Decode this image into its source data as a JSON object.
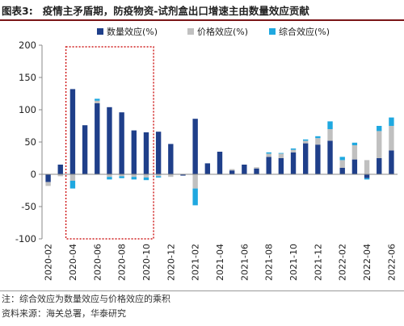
{
  "header": {
    "label": "图表3:",
    "title": "疫情主矛盾期，防疫物资-试剂盒出口增速主由数量效应贡献"
  },
  "notes": {
    "note": "注：综合效应为数量效应与价格效应的乘积",
    "source": "资料来源：海关总署，华泰研究"
  },
  "colors": {
    "quantity": "#1f3f8a",
    "price": "#c0c0c0",
    "combined": "#1fa8e0",
    "highlight_box": "#d02020",
    "axis": "#888888"
  },
  "chart_data": {
    "type": "bar",
    "stacked": true,
    "title": "",
    "xlabel": "",
    "ylabel": "",
    "ylim": [
      -100,
      200
    ],
    "yticks": [
      -100,
      -50,
      0,
      50,
      100,
      150,
      200
    ],
    "legend_position": "top",
    "grid": false,
    "categories": [
      "2020-02",
      "2020-03",
      "2020-04",
      "2020-05",
      "2020-06",
      "2020-07",
      "2020-08",
      "2020-09",
      "2020-10",
      "2020-11",
      "2020-12",
      "2021-01",
      "2021-02",
      "2021-03",
      "2021-04",
      "2021-05",
      "2021-06",
      "2021-07",
      "2021-08",
      "2021-09",
      "2021-10",
      "2021-11",
      "2021-12",
      "2022-01",
      "2022-02",
      "2022-03",
      "2022-04",
      "2022-05",
      "2022-06"
    ],
    "tick_labels": [
      "2020-02",
      "2020-04",
      "2020-06",
      "2020-08",
      "2020-10",
      "2020-12",
      "2021-02",
      "2021-04",
      "2021-06",
      "2021-08",
      "2021-10",
      "2021-12",
      "2022-02",
      "2022-04",
      "2022-06"
    ],
    "series": [
      {
        "name": "数量效应(%)",
        "color_key": "quantity",
        "values": [
          -12,
          15,
          132,
          76,
          110,
          104,
          96,
          68,
          65,
          66,
          47,
          -2,
          86,
          17,
          35,
          6,
          15,
          9,
          27,
          25,
          34,
          48,
          46,
          52,
          10,
          23,
          -6,
          25,
          37
        ]
      },
      {
        "name": "价格效应(%)",
        "color_key": "price",
        "values": [
          -6,
          -3,
          -10,
          0,
          4,
          -4,
          -3,
          -4,
          -5,
          -3,
          -4,
          0,
          -22,
          0,
          0,
          2,
          0,
          2,
          5,
          7,
          4,
          4,
          10,
          18,
          12,
          22,
          22,
          42,
          38
        ]
      },
      {
        "name": "综合效应(%)",
        "color_key": "combined",
        "values": [
          0,
          0,
          -12,
          0,
          3,
          -4,
          -3,
          -4,
          -4,
          -2,
          0,
          0,
          -26,
          0,
          0,
          0,
          0,
          0,
          2,
          1,
          2,
          2,
          3,
          12,
          5,
          4,
          -2,
          8,
          13
        ]
      }
    ],
    "highlight_range": [
      "2020-04",
      "2020-10"
    ]
  }
}
